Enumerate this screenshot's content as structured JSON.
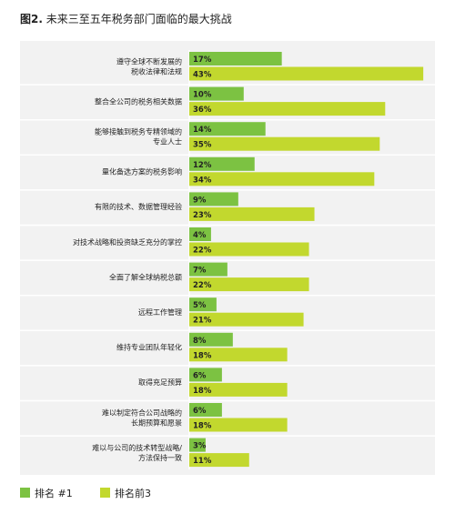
{
  "figure": {
    "label": "图2.",
    "title": "未来三至五年税务部门面临的最大挑战"
  },
  "colors": {
    "rank1": "#7cc242",
    "top3": "#c2d82e",
    "panel": "#f2f2f2",
    "divider": "#ffffff"
  },
  "chart_data": {
    "type": "bar",
    "orientation": "horizontal",
    "unit": "%",
    "categories": [
      [
        "遵守全球不断发展的",
        "税收法律和法规"
      ],
      [
        "整合全公司的税务相关数据"
      ],
      [
        "能够接触到税务专精领域的",
        "专业人士"
      ],
      [
        "量化备选方案的税务影响"
      ],
      [
        "有限的技术、数据管理经验"
      ],
      [
        "对技术战略和投资缺乏充分的掌控"
      ],
      [
        "全面了解全球纳税总额"
      ],
      [
        "远程工作管理"
      ],
      [
        "维持专业团队年轻化"
      ],
      [
        "取得充足预算"
      ],
      [
        "难以制定符合公司战略的",
        "长期预算和愿景"
      ],
      [
        "难以与公司的技术转型战略/",
        "方法保持一致"
      ]
    ],
    "series": [
      {
        "name": "排名 #1",
        "color": "#7cc242",
        "values": [
          17,
          10,
          14,
          12,
          9,
          4,
          7,
          5,
          8,
          6,
          6,
          3
        ]
      },
      {
        "name": "排名前3",
        "color": "#c2d82e",
        "values": [
          43,
          36,
          35,
          34,
          23,
          22,
          22,
          21,
          18,
          18,
          18,
          11
        ]
      }
    ],
    "xlim": [
      0,
      50
    ],
    "value_labels": true,
    "legend": "bottom-left",
    "grid": false
  },
  "legend": {
    "items": [
      {
        "label": "排名 #1",
        "color": "#7cc242"
      },
      {
        "label": "排名前3",
        "color": "#c2d82e"
      }
    ]
  }
}
